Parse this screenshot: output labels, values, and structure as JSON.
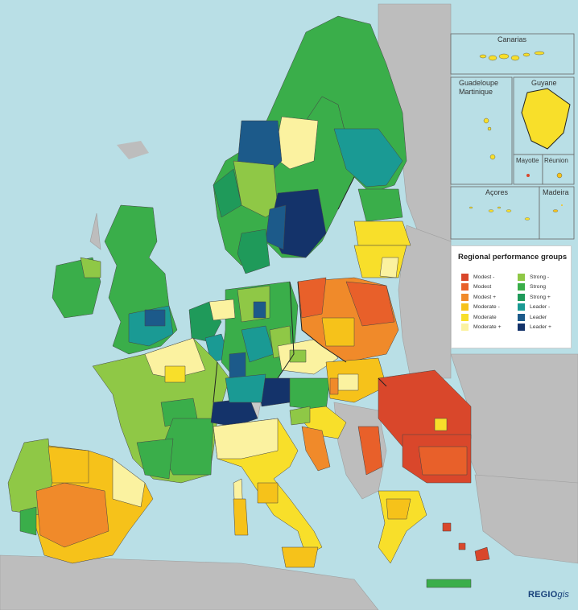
{
  "legend": {
    "title": "Regional performance groups",
    "items": [
      {
        "label": "Modest -",
        "color": "#d9472b"
      },
      {
        "label": "Modest",
        "color": "#e8602a"
      },
      {
        "label": "Modest +",
        "color": "#f08a2a"
      },
      {
        "label": "Moderate -",
        "color": "#f6c21a"
      },
      {
        "label": "Moderate",
        "color": "#f8df2a"
      },
      {
        "label": "Moderate +",
        "color": "#fbf2a0"
      },
      {
        "label": "Strong -",
        "color": "#8fc846"
      },
      {
        "label": "Strong",
        "color": "#3aae4a"
      },
      {
        "label": "Strong +",
        "color": "#1f9a5a"
      },
      {
        "label": "Leader -",
        "color": "#1a9a94"
      },
      {
        "label": "Leader",
        "color": "#1c5a8a"
      },
      {
        "label": "Leader +",
        "color": "#14336a"
      }
    ]
  },
  "insets": {
    "canarias": "Canarias",
    "guadeloupe": "Guadeloupe",
    "martinique": "Martinique",
    "guyane": "Guyane",
    "mayotte": "Mayotte",
    "reunion": "Réunion",
    "acores": "Açores",
    "madeira": "Madeira"
  },
  "brand": {
    "strong": "REGIO",
    "italic": "gis"
  },
  "colors": {
    "sea": "#b9dfe6",
    "non_eu_land": "#bdbdbd",
    "border": "#222222"
  }
}
